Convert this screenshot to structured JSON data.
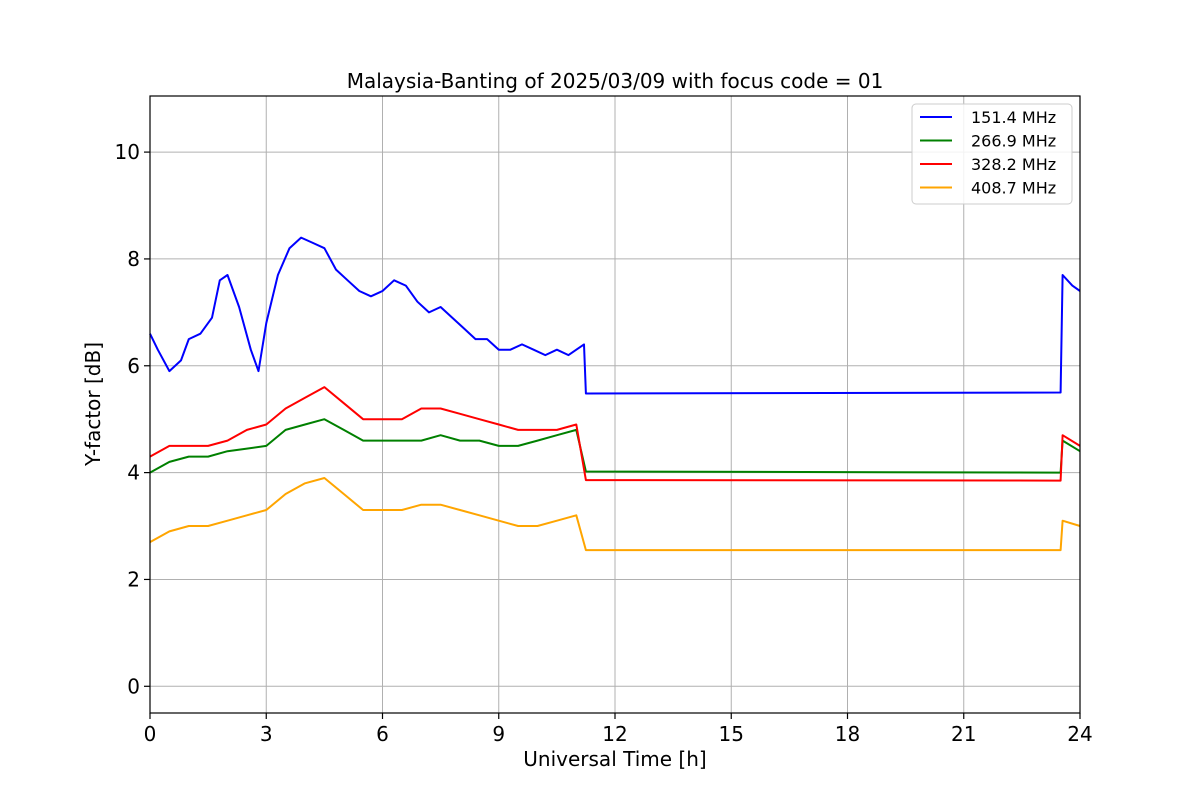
{
  "chart_data": {
    "type": "line",
    "title": "Malaysia-Banting of 2025/03/09 with focus code = 01",
    "xlabel": "Universal Time [h]",
    "ylabel": "Y-factor [dB]",
    "xlim": [
      0,
      24
    ],
    "ylim": [
      -0.5,
      11.05
    ],
    "xticks": [
      0,
      3,
      6,
      9,
      12,
      15,
      18,
      21,
      24
    ],
    "yticks": [
      0,
      2,
      4,
      6,
      8,
      10
    ],
    "grid": true,
    "legend_position": "top-right",
    "series": [
      {
        "name": "151.4 MHz",
        "color": "#0000ff",
        "x": [
          0,
          0.2,
          0.5,
          0.8,
          1.0,
          1.3,
          1.6,
          1.8,
          2.0,
          2.3,
          2.6,
          2.8,
          3.0,
          3.3,
          3.6,
          3.9,
          4.2,
          4.5,
          4.8,
          5.1,
          5.4,
          5.7,
          6.0,
          6.3,
          6.6,
          6.9,
          7.2,
          7.5,
          7.8,
          8.1,
          8.4,
          8.7,
          9.0,
          9.3,
          9.6,
          9.9,
          10.2,
          10.5,
          10.8,
          11.0,
          11.2,
          11.25,
          23.5,
          23.55,
          23.8,
          24.0
        ],
        "y": [
          6.6,
          6.3,
          5.9,
          6.1,
          6.5,
          6.6,
          6.9,
          7.6,
          7.7,
          7.1,
          6.3,
          5.9,
          6.8,
          7.7,
          8.2,
          8.4,
          8.3,
          8.2,
          7.8,
          7.6,
          7.4,
          7.3,
          7.4,
          7.6,
          7.5,
          7.2,
          7.0,
          7.1,
          6.9,
          6.7,
          6.5,
          6.5,
          6.3,
          6.3,
          6.4,
          6.3,
          6.2,
          6.3,
          6.2,
          6.3,
          6.4,
          5.48,
          5.5,
          7.7,
          7.5,
          7.4
        ]
      },
      {
        "name": "266.9 MHz",
        "color": "#008000",
        "x": [
          0,
          0.5,
          1.0,
          1.5,
          2.0,
          2.5,
          3.0,
          3.5,
          4.0,
          4.5,
          5.0,
          5.5,
          6.0,
          6.5,
          7.0,
          7.5,
          8.0,
          8.5,
          9.0,
          9.5,
          10.0,
          10.5,
          11.0,
          11.25,
          23.5,
          23.55,
          24.0
        ],
        "y": [
          4.0,
          4.2,
          4.3,
          4.3,
          4.4,
          4.45,
          4.5,
          4.8,
          4.9,
          5.0,
          4.8,
          4.6,
          4.6,
          4.6,
          4.6,
          4.7,
          4.6,
          4.6,
          4.5,
          4.5,
          4.6,
          4.7,
          4.8,
          4.02,
          4.0,
          4.6,
          4.4
        ]
      },
      {
        "name": "328.2 MHz",
        "color": "#ff0000",
        "x": [
          0,
          0.5,
          1.0,
          1.5,
          2.0,
          2.5,
          3.0,
          3.5,
          4.0,
          4.5,
          5.0,
          5.5,
          6.0,
          6.5,
          7.0,
          7.5,
          8.0,
          8.5,
          9.0,
          9.5,
          10.0,
          10.5,
          11.0,
          11.25,
          23.5,
          23.55,
          24.0
        ],
        "y": [
          4.3,
          4.5,
          4.5,
          4.5,
          4.6,
          4.8,
          4.9,
          5.2,
          5.4,
          5.6,
          5.3,
          5.0,
          5.0,
          5.0,
          5.2,
          5.2,
          5.1,
          5.0,
          4.9,
          4.8,
          4.8,
          4.8,
          4.9,
          3.86,
          3.85,
          4.7,
          4.5
        ]
      },
      {
        "name": "408.7 MHz",
        "color": "#ffa500",
        "x": [
          0,
          0.5,
          1.0,
          1.5,
          2.0,
          2.5,
          3.0,
          3.5,
          4.0,
          4.5,
          5.0,
          5.5,
          6.0,
          6.5,
          7.0,
          7.5,
          8.0,
          8.5,
          9.0,
          9.5,
          10.0,
          10.5,
          11.0,
          11.25,
          23.5,
          23.55,
          24.0
        ],
        "y": [
          2.7,
          2.9,
          3.0,
          3.0,
          3.1,
          3.2,
          3.3,
          3.6,
          3.8,
          3.9,
          3.6,
          3.3,
          3.3,
          3.3,
          3.4,
          3.4,
          3.3,
          3.2,
          3.1,
          3.0,
          3.0,
          3.1,
          3.2,
          2.55,
          2.55,
          3.1,
          3.0
        ]
      }
    ]
  }
}
